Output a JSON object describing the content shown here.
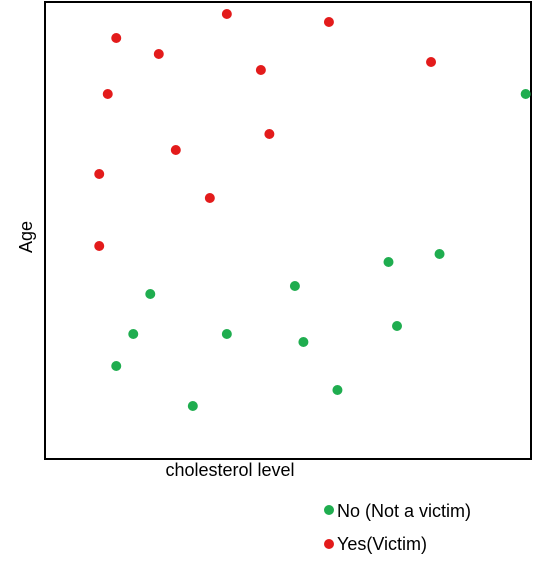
{
  "chart_data": {
    "type": "scatter",
    "title": "",
    "xlabel": "cholesterol level",
    "ylabel": "Age",
    "xlim": [
      0,
      457
    ],
    "ylim": [
      0,
      457
    ],
    "grid": false,
    "legend_position": "bottom-right",
    "series": [
      {
        "name": "No (Not a victim)",
        "color": "#1fad4f",
        "points": [
          {
            "x": 452,
            "y": 365
          },
          {
            "x": 371,
            "y": 205
          },
          {
            "x": 323,
            "y": 197
          },
          {
            "x": 235,
            "y": 173
          },
          {
            "x": 99,
            "y": 165
          },
          {
            "x": 331,
            "y": 133
          },
          {
            "x": 83,
            "y": 125
          },
          {
            "x": 171,
            "y": 125
          },
          {
            "x": 243,
            "y": 117
          },
          {
            "x": 67,
            "y": 93
          },
          {
            "x": 275,
            "y": 69
          },
          {
            "x": 139,
            "y": 53
          }
        ]
      },
      {
        "name": "Yes(Victim)",
        "color": "#e31b1b",
        "points": [
          {
            "x": 171,
            "y": 445
          },
          {
            "x": 267,
            "y": 437
          },
          {
            "x": 67,
            "y": 421
          },
          {
            "x": 107,
            "y": 405
          },
          {
            "x": 363,
            "y": 397
          },
          {
            "x": 203,
            "y": 389
          },
          {
            "x": 59,
            "y": 365
          },
          {
            "x": 211,
            "y": 325
          },
          {
            "x": 123,
            "y": 309
          },
          {
            "x": 51,
            "y": 285
          },
          {
            "x": 155,
            "y": 261
          },
          {
            "x": 51,
            "y": 213
          }
        ]
      }
    ]
  }
}
